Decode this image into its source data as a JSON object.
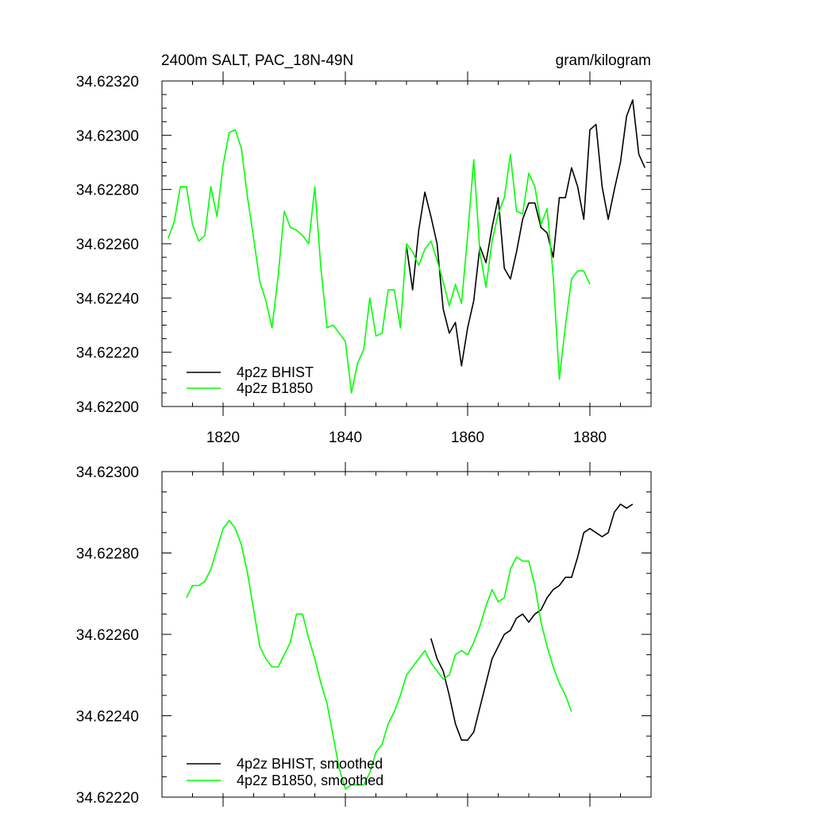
{
  "chart_data": [
    {
      "type": "line",
      "title_left": "2400m SALT, PAC_18N-49N",
      "title_right": "gram/kilogram",
      "xlim": [
        1810,
        1890
      ],
      "ylim": [
        34.622,
        34.6232
      ],
      "xticks": [
        1820,
        1840,
        1860,
        1880
      ],
      "xtick_labels": [
        "1820",
        "1840",
        "1860",
        "1880"
      ],
      "yticks": [
        34.622,
        34.6222,
        34.6224,
        34.6226,
        34.6228,
        34.623,
        34.6232
      ],
      "ytick_labels": [
        "34.62200",
        "34.62220",
        "34.62240",
        "34.62260",
        "34.62280",
        "34.62300",
        "34.62320"
      ],
      "legend_position": "bottom-left",
      "series": [
        {
          "name": "4p2z BHIST",
          "color": "#000000",
          "x": [
            1850,
            1851,
            1852,
            1853,
            1854,
            1855,
            1856,
            1857,
            1858,
            1859,
            1860,
            1861,
            1862,
            1863,
            1864,
            1865,
            1866,
            1867,
            1868,
            1869,
            1870,
            1871,
            1872,
            1873,
            1874,
            1875,
            1876,
            1877,
            1878,
            1879,
            1880,
            1881,
            1882,
            1883,
            1884,
            1885,
            1886,
            1887,
            1888,
            1889
          ],
          "y": [
            34.62259,
            34.62243,
            34.62265,
            34.62279,
            34.6227,
            34.6226,
            34.62236,
            34.62227,
            34.62231,
            34.62215,
            34.62229,
            34.62239,
            34.62259,
            34.62253,
            34.62266,
            34.62277,
            34.62251,
            34.62247,
            34.62257,
            34.62269,
            34.62275,
            34.62275,
            34.62266,
            34.62264,
            34.62255,
            34.62277,
            34.62277,
            34.62288,
            34.62281,
            34.62269,
            34.62302,
            34.62304,
            34.62281,
            34.62269,
            34.6228,
            34.6229,
            34.62307,
            34.62313,
            34.62293,
            34.62288
          ]
        },
        {
          "name": "4p2z B1850",
          "color": "#00ff00",
          "x": [
            1811,
            1812,
            1813,
            1814,
            1815,
            1816,
            1817,
            1818,
            1819,
            1820,
            1821,
            1822,
            1823,
            1824,
            1825,
            1826,
            1827,
            1828,
            1829,
            1830,
            1831,
            1832,
            1833,
            1834,
            1835,
            1836,
            1837,
            1838,
            1839,
            1840,
            1841,
            1842,
            1843,
            1844,
            1845,
            1846,
            1847,
            1848,
            1849,
            1850,
            1851,
            1852,
            1853,
            1854,
            1855,
            1856,
            1857,
            1858,
            1859,
            1860,
            1861,
            1862,
            1863,
            1864,
            1865,
            1866,
            1867,
            1868,
            1869,
            1870,
            1871,
            1872,
            1873,
            1874,
            1875,
            1876,
            1877,
            1878,
            1879,
            1880
          ],
          "y": [
            34.62262,
            34.62268,
            34.62281,
            34.62281,
            34.62267,
            34.62261,
            34.62263,
            34.62281,
            34.6227,
            34.62289,
            34.62301,
            34.62302,
            34.62295,
            34.62277,
            34.62262,
            34.62246,
            34.62239,
            34.62229,
            34.62248,
            34.62272,
            34.62266,
            34.62265,
            34.62263,
            34.6226,
            34.62281,
            34.62251,
            34.62229,
            34.6223,
            34.62227,
            34.62224,
            34.62205,
            34.62216,
            34.62221,
            34.6224,
            34.62226,
            34.62227,
            34.62243,
            34.62243,
            34.62229,
            34.6226,
            34.62257,
            34.62252,
            34.62258,
            34.62261,
            34.62254,
            34.62246,
            34.62237,
            34.62245,
            34.62238,
            34.62263,
            34.62291,
            34.62257,
            34.62244,
            34.62261,
            34.62271,
            34.62277,
            34.62293,
            34.62272,
            34.62271,
            34.62286,
            34.62281,
            34.62267,
            34.62273,
            34.62248,
            34.6221,
            34.6223,
            34.62247,
            34.6225,
            34.6225,
            34.62245
          ]
        }
      ]
    },
    {
      "type": "line",
      "xlim": [
        1810,
        1890
      ],
      "ylim": [
        34.6222,
        34.623
      ],
      "xticks": [
        1820,
        1840,
        1860,
        1880
      ],
      "yticks": [
        34.6222,
        34.6224,
        34.6226,
        34.6228,
        34.623
      ],
      "ytick_labels": [
        "34.62220",
        "34.62240",
        "34.62260",
        "34.62280",
        "34.62300"
      ],
      "legend_position": "bottom-left",
      "series": [
        {
          "name": "4p2z BHIST, smoothed",
          "color": "#000000",
          "x": [
            1854,
            1855,
            1856,
            1857,
            1858,
            1859,
            1860,
            1861,
            1862,
            1863,
            1864,
            1865,
            1866,
            1867,
            1868,
            1869,
            1870,
            1871,
            1872,
            1873,
            1874,
            1875,
            1876,
            1877,
            1878,
            1879,
            1880,
            1881,
            1882,
            1883,
            1884,
            1885,
            1886,
            1887
          ],
          "y": [
            34.62259,
            34.62254,
            34.62251,
            34.62245,
            34.62238,
            34.62234,
            34.62234,
            34.62236,
            34.62242,
            34.62248,
            34.62254,
            34.62257,
            34.6226,
            34.62261,
            34.62264,
            34.62265,
            34.62263,
            34.62265,
            34.62266,
            34.62269,
            34.62271,
            34.62272,
            34.62274,
            34.62274,
            34.62279,
            34.62285,
            34.62286,
            34.62285,
            34.62284,
            34.62285,
            34.6229,
            34.62292,
            34.62291,
            34.62292
          ]
        },
        {
          "name": "4p2z B1850, smoothed",
          "color": "#00ff00",
          "x": [
            1814,
            1815,
            1816,
            1817,
            1818,
            1819,
            1820,
            1821,
            1822,
            1823,
            1824,
            1825,
            1826,
            1827,
            1828,
            1829,
            1830,
            1831,
            1832,
            1833,
            1834,
            1835,
            1836,
            1837,
            1838,
            1839,
            1840,
            1841,
            1842,
            1843,
            1844,
            1845,
            1846,
            1847,
            1848,
            1849,
            1850,
            1851,
            1852,
            1853,
            1854,
            1855,
            1856,
            1857,
            1858,
            1859,
            1860,
            1861,
            1862,
            1863,
            1864,
            1865,
            1866,
            1867,
            1868,
            1869,
            1870,
            1871,
            1872,
            1873,
            1874,
            1875,
            1876,
            1877
          ],
          "y": [
            34.62269,
            34.62272,
            34.62272,
            34.62273,
            34.62276,
            34.62281,
            34.62286,
            34.62288,
            34.62286,
            34.62282,
            34.62275,
            34.62266,
            34.62257,
            34.62254,
            34.62252,
            34.62252,
            34.62255,
            34.62258,
            34.62265,
            34.62265,
            34.62259,
            34.62254,
            34.62248,
            34.62243,
            34.62235,
            34.62227,
            34.62222,
            34.62223,
            34.62223,
            34.62223,
            34.62226,
            34.62231,
            34.62233,
            34.62238,
            34.62241,
            34.62245,
            34.6225,
            34.62252,
            34.62254,
            34.62256,
            34.62253,
            34.62251,
            34.62249,
            34.6225,
            34.62255,
            34.62256,
            34.62255,
            34.62258,
            34.62262,
            34.62267,
            34.62271,
            34.62268,
            34.62269,
            34.62276,
            34.62279,
            34.62278,
            34.62278,
            34.62272,
            34.62263,
            34.62257,
            34.62252,
            34.62248,
            34.62245,
            34.62241
          ]
        }
      ]
    }
  ]
}
